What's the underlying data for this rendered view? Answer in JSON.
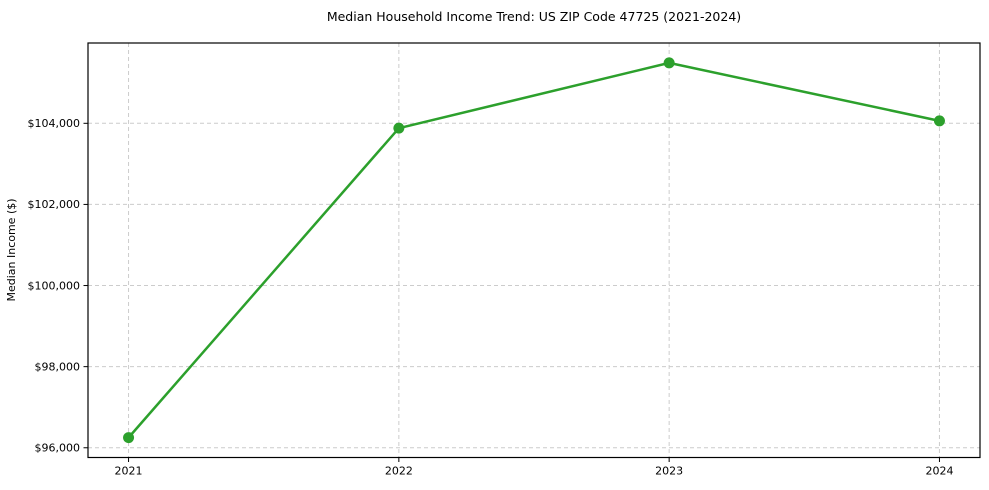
{
  "figure": {
    "background": "#ffffff"
  },
  "chart_data": {
    "type": "line",
    "title": "Median Household Income Trend: US ZIP Code 47725 (2021-2024)",
    "xlabel": "",
    "ylabel": "Median Income ($)",
    "x": [
      2021,
      2022,
      2023,
      2024
    ],
    "x_tick_labels": [
      "2021",
      "2022",
      "2023",
      "2024"
    ],
    "y_ticks": [
      {
        "value": 96000,
        "label": "$96,000"
      },
      {
        "value": 98000,
        "label": "$98,000"
      },
      {
        "value": 100000,
        "label": "$100,000"
      },
      {
        "value": 102000,
        "label": "$102,000"
      },
      {
        "value": 104000,
        "label": "$104,000"
      }
    ],
    "series": [
      {
        "name": "Median Household Income",
        "values": [
          96250,
          103880,
          105490,
          104060
        ],
        "color": "#2ca02c",
        "marker": "circle"
      }
    ],
    "xlim": [
      2020.85,
      2024.15
    ],
    "ylim": [
      95760,
      105980
    ],
    "grid": "dashed-both-axes",
    "grid_color": "#cccccc",
    "frame_color": "#000000",
    "legend": "none"
  }
}
